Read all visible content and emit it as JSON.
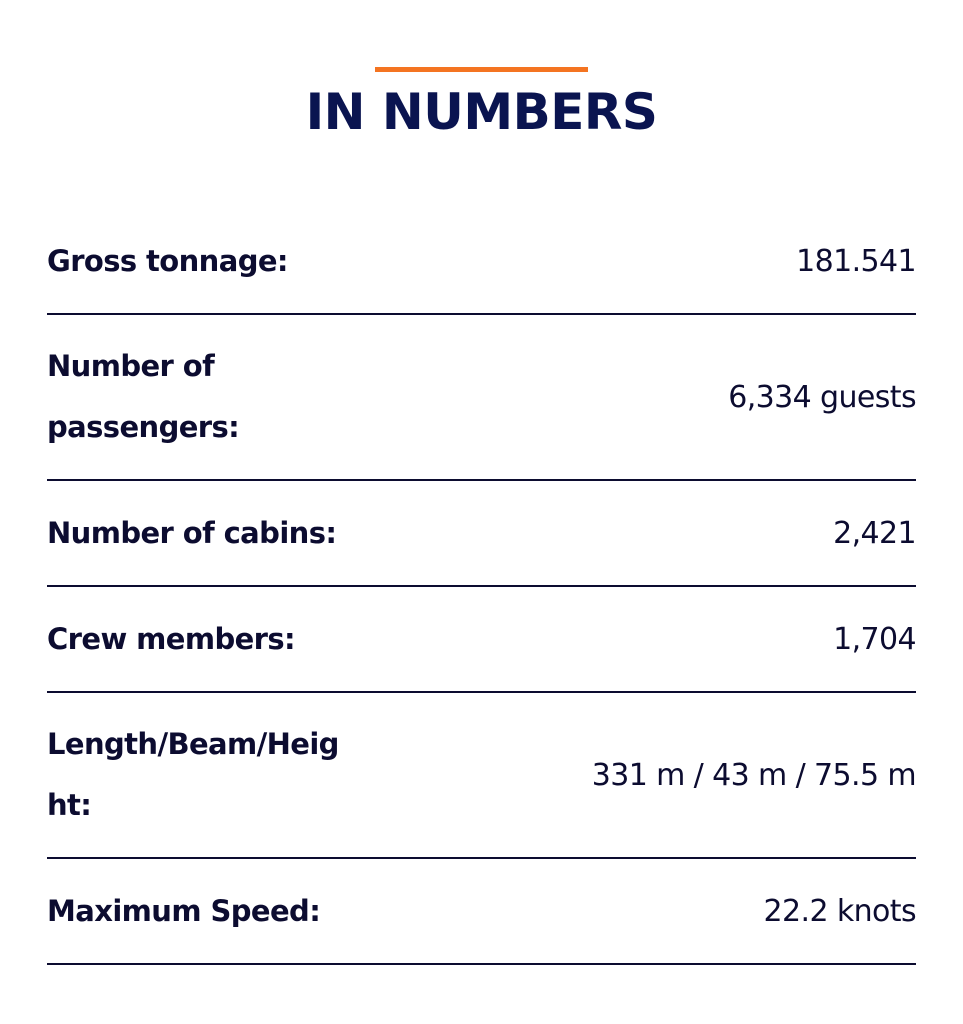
{
  "title": "IN NUMBERS",
  "colors": {
    "accent": "#f47421",
    "title": "#0a1450",
    "text": "#0c0c30"
  },
  "rows": [
    {
      "label": "Gross tonnage:",
      "value": "181.541"
    },
    {
      "label": "Number of passengers:",
      "value": "6,334 guests"
    },
    {
      "label": "Number of cabins:",
      "value": "2,421"
    },
    {
      "label": "Crew members:",
      "value": "1,704"
    },
    {
      "label": "Length/Beam/Height:",
      "value": "331 m / 43 m / 75.5 m"
    },
    {
      "label": "Maximum Speed:",
      "value": "22.2 knots"
    }
  ]
}
